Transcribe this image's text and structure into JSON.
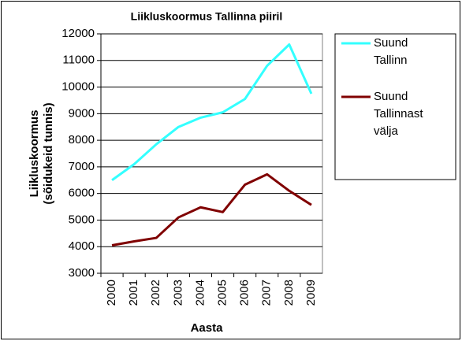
{
  "chart_data": {
    "type": "line",
    "title": "Liikluskoormus Tallinna piiril",
    "x_label": "Aasta",
    "y_label": "Liikluskoormus (sõidukeid tunnis)",
    "categories": [
      "2000",
      "2001",
      "2002",
      "2003",
      "2004",
      "2005",
      "2006",
      "2007",
      "2008",
      "2009"
    ],
    "series": [
      {
        "name": "Suund Tallinn",
        "color": "#33ffff",
        "values": [
          6500,
          7100,
          7850,
          8500,
          8850,
          9050,
          9550,
          10800,
          11600,
          9750
        ]
      },
      {
        "name": "Suund Tallinnast välja",
        "color": "#800000",
        "values": [
          4050,
          4200,
          4330,
          5100,
          5480,
          5300,
          6330,
          6720,
          6100,
          5570
        ]
      }
    ],
    "ylim": [
      3000,
      12000
    ],
    "yticks": [
      3000,
      4000,
      5000,
      6000,
      7000,
      8000,
      9000,
      10000,
      11000,
      12000
    ],
    "grid": true,
    "legend": "right"
  }
}
